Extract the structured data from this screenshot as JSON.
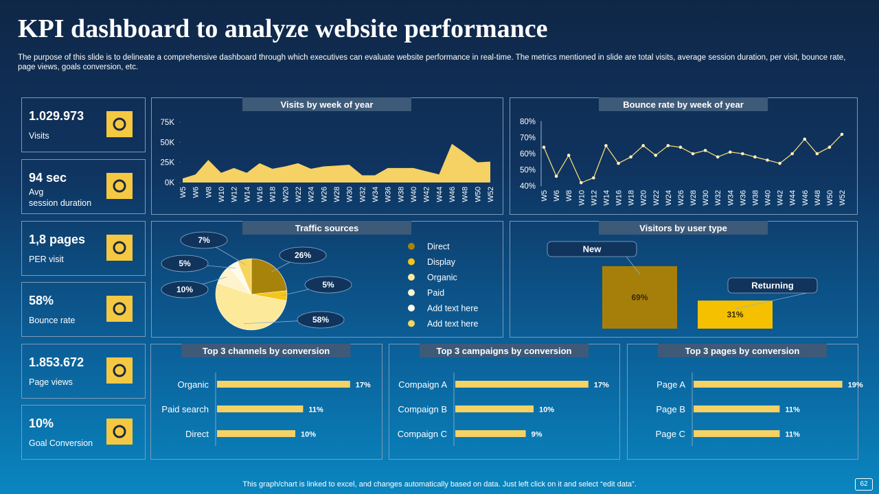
{
  "header": {
    "title": "KPI dashboard to analyze website performance",
    "subtitle": "The purpose of this slide is to delineate a comprehensive dashboard through which executives can evaluate website performance in real-time. The metrics mentioned in slide are total visits, average session duration, per visit, bounce rate, page views, goals conversion, etc."
  },
  "kpis": [
    {
      "value": "1.029.973",
      "label": "Visits"
    },
    {
      "value": "94 sec",
      "label": "Avg session duration"
    },
    {
      "value": "1,8 pages",
      "label": "PER visit"
    },
    {
      "value": "58%",
      "label": "Bounce rate"
    },
    {
      "value": "1.853.672",
      "label": "Page views"
    },
    {
      "value": "10%",
      "label": "Goal Conversion"
    }
  ],
  "chart_data": [
    {
      "type": "area",
      "title": "Visits by week of year",
      "color": "#f6d164",
      "categories": [
        "W5",
        "W6",
        "W8",
        "W10",
        "W12",
        "W14",
        "W16",
        "W18",
        "W20",
        "W22",
        "W24",
        "W26",
        "W28",
        "W30",
        "W32",
        "W34",
        "W36",
        "W38",
        "W40",
        "W42",
        "W44",
        "W46",
        "W48",
        "W50",
        "W52"
      ],
      "values": [
        5000,
        10000,
        28000,
        12000,
        18000,
        12000,
        24000,
        17000,
        20000,
        24000,
        17000,
        20000,
        21000,
        22000,
        9000,
        9000,
        18000,
        18000,
        18000,
        14000,
        10000,
        48000,
        37000,
        25000,
        26000
      ],
      "ylim": [
        0,
        75000
      ],
      "yticks": [
        {
          "value": 0,
          "label": "0K"
        },
        {
          "value": 25000,
          "label": "25K"
        },
        {
          "value": 50000,
          "label": "50K"
        },
        {
          "value": 75000,
          "label": "75K"
        }
      ]
    },
    {
      "type": "line",
      "title": "Bounce rate by week of year",
      "color": "#f6d770",
      "categories": [
        "W5",
        "W6",
        "W8",
        "W10",
        "W12",
        "W14",
        "W16",
        "W18",
        "W20",
        "W22",
        "W24",
        "W26",
        "W28",
        "W30",
        "W32",
        "W34",
        "W36",
        "W38",
        "W40",
        "W42",
        "W44",
        "W46",
        "W48",
        "W50",
        "W52"
      ],
      "values": [
        64,
        46,
        59,
        42,
        45,
        65,
        54,
        58,
        65,
        59,
        65,
        64,
        60,
        62,
        58,
        61,
        60,
        58,
        56,
        54,
        60,
        69,
        60,
        64,
        72
      ],
      "ylim": [
        40,
        80
      ],
      "yticks": [
        {
          "value": 40,
          "label": "40%"
        },
        {
          "value": 50,
          "label": "50%"
        },
        {
          "value": 60,
          "label": "60%"
        },
        {
          "value": 70,
          "label": "70%"
        },
        {
          "value": 80,
          "label": "80%"
        }
      ]
    },
    {
      "type": "pie",
      "title": "Traffic sources",
      "categories": [
        "Direct",
        "Display",
        "Organic",
        "Paid",
        "Add text here",
        "Add text here"
      ],
      "values": [
        26,
        5,
        58,
        10,
        5,
        7
      ],
      "value_labels": [
        "26%",
        "5%",
        "58%",
        "10%",
        "5%",
        "7%"
      ],
      "colors": [
        "#a8830c",
        "#f5c518",
        "#fde99a",
        "#fef3cc",
        "#fffbea",
        "#f7d45c"
      ]
    },
    {
      "type": "bar",
      "title": "Visitors by user type",
      "categories": [
        "New",
        "Returning"
      ],
      "values": [
        69,
        31
      ],
      "value_labels": [
        "69%",
        "31%"
      ],
      "colors": [
        "#a67f0a",
        "#f5c000"
      ]
    },
    {
      "type": "hbar",
      "title": "Top 3 channels by conversion",
      "color": "#f6d164",
      "categories": [
        "Organic",
        "Paid search",
        "Direct"
      ],
      "values": [
        17,
        11,
        10
      ],
      "value_labels": [
        "17%",
        "11%",
        "10%"
      ]
    },
    {
      "type": "hbar",
      "title": "Top 3 campaigns by conversion",
      "color": "#f6d164",
      "categories": [
        "Compaign A",
        "Compaign B",
        "Compaign C"
      ],
      "values": [
        17,
        10,
        9
      ],
      "value_labels": [
        "17%",
        "10%",
        "9%"
      ]
    },
    {
      "type": "hbar",
      "title": "Top 3 pages by conversion",
      "color": "#f6d164",
      "categories": [
        "Page A",
        "Page B",
        "Page C"
      ],
      "values": [
        19,
        11,
        11
      ],
      "value_labels": [
        "19%",
        "11%",
        "11%"
      ]
    }
  ],
  "footer": {
    "note": "This graph/chart is linked to excel, and changes automatically based on data. Just left click on it and select “edit data”.",
    "page": "62"
  }
}
